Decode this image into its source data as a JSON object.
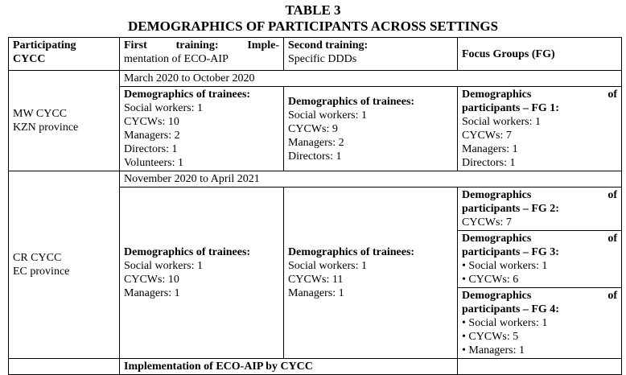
{
  "title": {
    "line1": "TABLE 3",
    "line2": "DEMOGRAPHICS OF PARTICIPANTS ACROSS SETTINGS"
  },
  "header": {
    "col1": [
      "Participating",
      "CYCC"
    ],
    "col2": [
      "First training: Imple-",
      "mentation of ECO-AIP"
    ],
    "col3": [
      "Second training:",
      "Specific DDDs"
    ],
    "col4": "Focus Groups (FG)"
  },
  "rows": [
    {
      "cycc": [
        "MW CYCC",
        "KZN province"
      ],
      "period": "March 2020 to October 2020",
      "first": {
        "heading": "Demographics of trainees:",
        "items": [
          "Social workers: 1",
          "CYCWs: 10",
          "Managers: 2",
          "Directors: 1",
          "Volunteers: 1"
        ]
      },
      "second": {
        "heading": "Demographics of trainees:",
        "items": [
          "Social workers: 1",
          "CYCWs: 9",
          "Managers: 2",
          "Directors: 1"
        ]
      },
      "fg": [
        {
          "heading1": "Demographics of",
          "heading2": "participants – FG 1:",
          "items": [
            "Social workers: 1",
            "CYCWs: 7",
            "Managers: 1",
            "Directors: 1"
          ]
        }
      ]
    },
    {
      "cycc": [
        "CR CYCC",
        "EC province"
      ],
      "period": "November 2020 to April 2021",
      "first": {
        "heading": "Demographics of trainees:",
        "items": [
          "Social workers: 1",
          "CYCWs: 10",
          "Managers: 1"
        ]
      },
      "second": {
        "heading": "Demographics of trainees:",
        "items": [
          "Social workers: 1",
          "CYCWs: 11",
          "Managers: 1"
        ]
      },
      "fg": [
        {
          "heading1": "Demographics of",
          "heading2": "participants – FG 2:",
          "items": [
            "CYCWs: 7"
          ]
        },
        {
          "heading1": "Demographics of",
          "heading2": "participants – FG 3:",
          "items": [
            "• Social workers: 1",
            "• CYCWs: 6"
          ]
        },
        {
          "heading1": "Demographics of",
          "heading2": "participants – FG 4:",
          "items": [
            "• Social workers: 1",
            "• CYCWs: 5",
            "• Managers: 1"
          ]
        }
      ]
    }
  ],
  "last_row": {
    "label": "Implementation of ECO-AIP by CYCC"
  }
}
